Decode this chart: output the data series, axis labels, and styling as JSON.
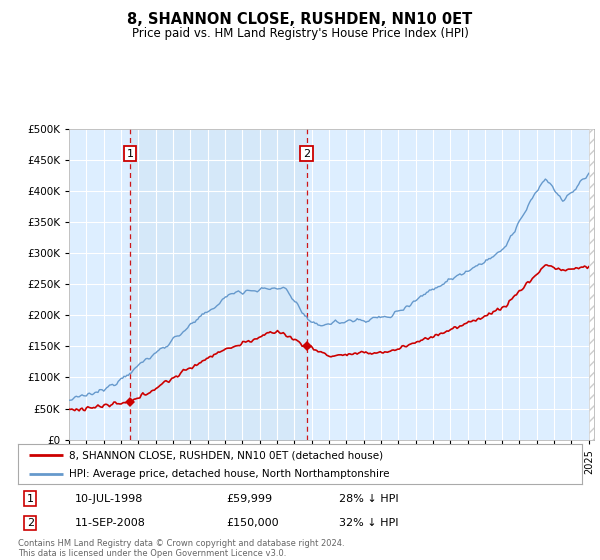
{
  "title": "8, SHANNON CLOSE, RUSHDEN, NN10 0ET",
  "subtitle": "Price paid vs. HM Land Registry's House Price Index (HPI)",
  "legend_label_red": "8, SHANNON CLOSE, RUSHDEN, NN10 0ET (detached house)",
  "legend_label_blue": "HPI: Average price, detached house, North Northamptonshire",
  "annotation1_date": "10-JUL-1998",
  "annotation1_price": "£59,999",
  "annotation1_hpi": "28% ↓ HPI",
  "annotation2_date": "11-SEP-2008",
  "annotation2_price": "£150,000",
  "annotation2_hpi": "32% ↓ HPI",
  "footer": "Contains HM Land Registry data © Crown copyright and database right 2024.\nThis data is licensed under the Open Government Licence v3.0.",
  "color_red": "#cc0000",
  "color_blue": "#6699cc",
  "color_bg": "#ddeeff",
  "color_fill": "#d0e4f5",
  "ylim": [
    0,
    500000
  ],
  "yticks": [
    0,
    50000,
    100000,
    150000,
    200000,
    250000,
    300000,
    350000,
    400000,
    450000,
    500000
  ],
  "sale1_year": 1998.53,
  "sale1_price": 59999,
  "sale2_year": 2008.71,
  "sale2_price": 150000,
  "xmin": 1995,
  "xmax": 2025.3
}
